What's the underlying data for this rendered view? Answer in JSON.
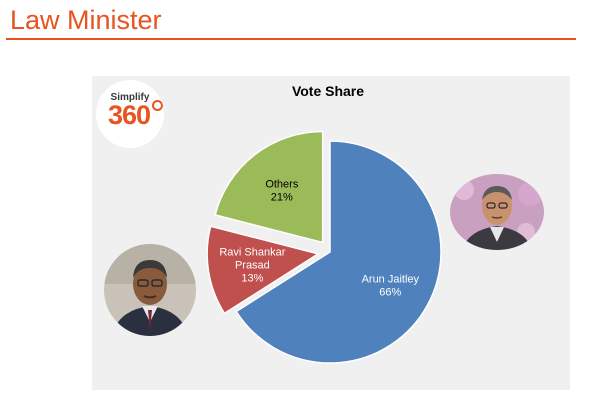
{
  "slide": {
    "title": "Law Minister"
  },
  "logo": {
    "brand_top": "Simplify",
    "brand_number": "360"
  },
  "colors": {
    "accent": "#e8531f",
    "panel": "#f0f0f0",
    "blue": "#4f81bd",
    "red": "#c0504d",
    "green": "#9bbb59"
  },
  "chart_data": {
    "type": "pie",
    "title": "Vote Share",
    "slices": [
      {
        "label_lines": [
          "Arun Jaitley"
        ],
        "value": 66,
        "value_label": "66%",
        "color": "#4f81bd",
        "exploded": false
      },
      {
        "label_lines": [
          "Ravi Shankar",
          "Prasad"
        ],
        "value": 13,
        "value_label": "13%",
        "color": "#c0504d",
        "exploded": true
      },
      {
        "label_lines": [
          "Others"
        ],
        "value": 21,
        "value_label": "21%",
        "color": "#9bbb59",
        "exploded": true
      }
    ],
    "legend": "none"
  },
  "photos": [
    {
      "name": "photo-arun-jaitley"
    },
    {
      "name": "photo-ravi-shankar-prasad"
    }
  ]
}
